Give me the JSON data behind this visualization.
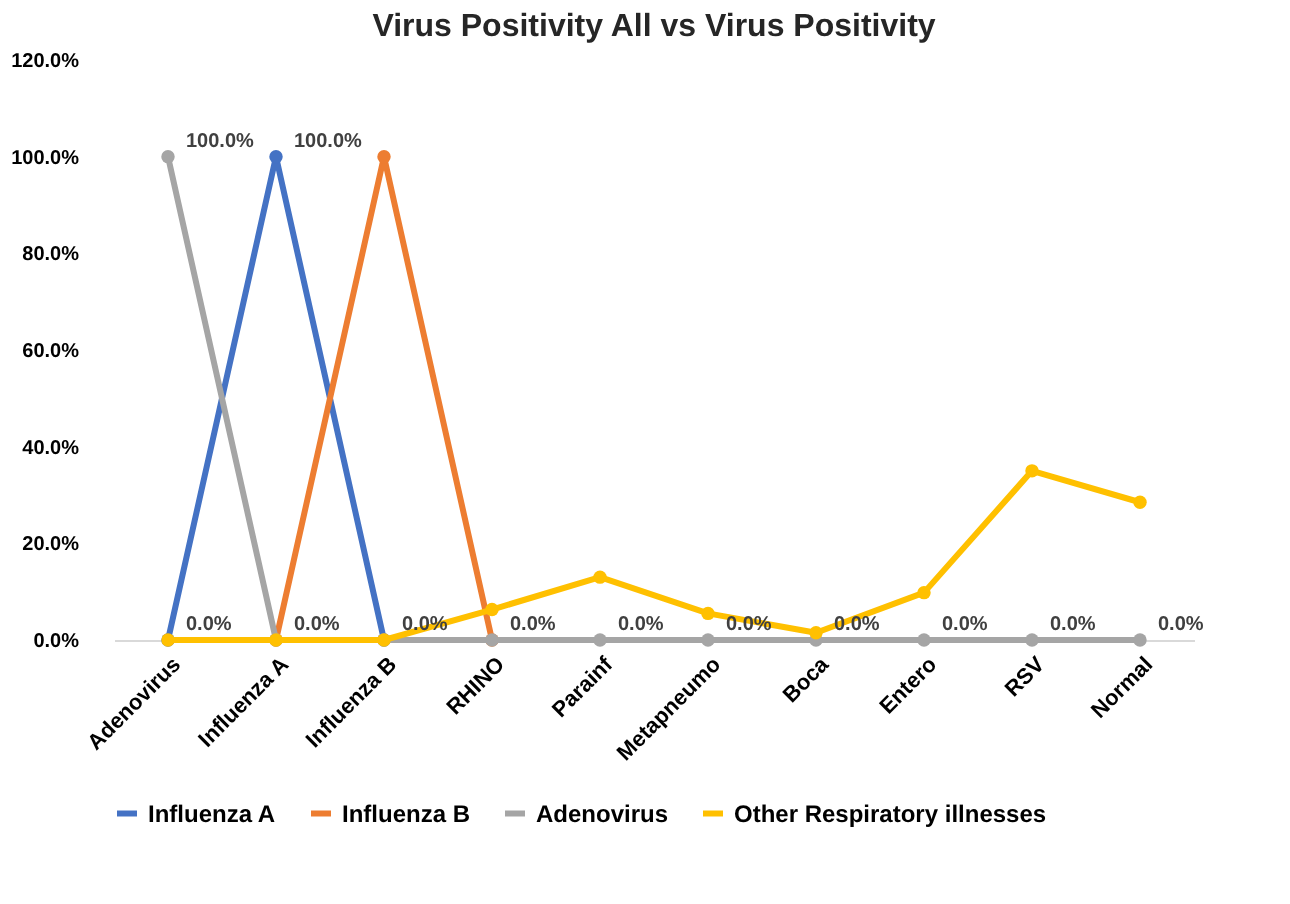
{
  "chart_data": {
    "type": "line",
    "title": "Virus Positivity All vs Virus Positivity",
    "categories": [
      "Adenovirus",
      "Influenza A",
      "Influenza B",
      "RHINO",
      "Parainf",
      "Metapneumo",
      "Boca",
      "Entero",
      "RSV",
      "Normal"
    ],
    "series": [
      {
        "name": "Influenza A",
        "color": "#4472c4",
        "values": [
          0,
          100,
          0,
          null,
          null,
          null,
          null,
          null,
          null,
          null
        ],
        "value_labels": [
          "0.0%",
          "100.0%",
          null,
          null,
          null,
          null,
          null,
          null,
          null,
          null
        ]
      },
      {
        "name": "Influenza B",
        "color": "#ed7d31",
        "values": [
          null,
          0,
          100,
          0,
          null,
          null,
          null,
          null,
          null,
          null
        ]
      },
      {
        "name": "Adenovirus",
        "color": "#a5a5a5",
        "values": [
          100,
          0,
          0,
          0,
          0,
          0,
          0,
          0,
          0,
          0
        ],
        "value_labels": [
          "100.0%",
          "0.0%",
          "0.0%",
          "0.0%",
          "0.0%",
          "0.0%",
          "0.0%",
          "0.0%",
          "0.0%",
          "0.0%"
        ]
      },
      {
        "name": "Other Respiratory illnesses",
        "color": "#ffc000",
        "values": [
          0,
          0,
          0,
          6.3,
          13,
          5.5,
          1.5,
          9.8,
          35,
          28.5
        ]
      }
    ],
    "ylim": [
      0,
      120
    ],
    "yticks": [
      {
        "value": 0,
        "label": "0.0%"
      },
      {
        "value": 20,
        "label": "20.0%"
      },
      {
        "value": 40,
        "label": "40.0%"
      },
      {
        "value": 60,
        "label": "60.0%"
      },
      {
        "value": 80,
        "label": "80.0%"
      },
      {
        "value": 100,
        "label": "100.0%"
      },
      {
        "value": 120,
        "label": "120.0%"
      }
    ],
    "grid": false,
    "legend": "bottom",
    "marker": "circle",
    "line_style": "solid"
  }
}
